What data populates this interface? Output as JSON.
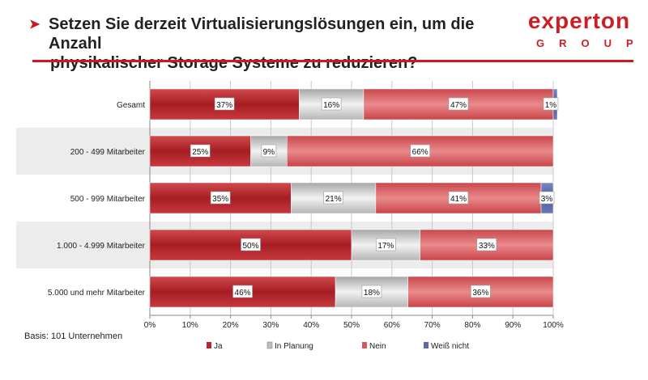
{
  "header": {
    "title_line1": "Setzen Sie derzeit Virtualisierungslösungen ein, um die Anzahl",
    "title_line2": "physikalischer Storage Systeme zu reduzieren?",
    "arrow_icon": "arrow-right-icon"
  },
  "logo": {
    "word": "experton",
    "group": "GROUP"
  },
  "footer": {
    "basis": "Basis: 101 Unternehmen"
  },
  "colors": {
    "accent": "#d3161b",
    "ja": "#b5272c",
    "in_planung": "#bdbdbd",
    "nein": "#d7575b",
    "weiss_nicht": "#5b6aa8"
  },
  "chart_data": {
    "type": "bar",
    "orientation": "horizontal",
    "stacked": true,
    "title": "Setzen Sie derzeit Virtualisierungslösungen ein, um die Anzahl physikalischer Storage Systeme zu reduzieren?",
    "categories": [
      "Gesamt",
      "200 - 499 Mitarbeiter",
      "500 - 999 Mitarbeiter",
      "1.000 - 4.999 Mitarbeiter",
      "5.000 und mehr Mitarbeiter"
    ],
    "series": [
      {
        "name": "Ja",
        "values": [
          37,
          25,
          35,
          50,
          46
        ]
      },
      {
        "name": "In Planung",
        "values": [
          16,
          9,
          21,
          17,
          18
        ]
      },
      {
        "name": "Nein",
        "values": [
          47,
          66,
          41,
          33,
          36
        ]
      },
      {
        "name": "Weiß nicht",
        "values": [
          1,
          0,
          3,
          0,
          0
        ]
      }
    ],
    "data_labels": [
      [
        "37%",
        "16%",
        "47%",
        "1%"
      ],
      [
        "25%",
        "9%",
        "66%",
        ""
      ],
      [
        "35%",
        "21%",
        "41%",
        "3%"
      ],
      [
        "50%",
        "17%",
        "33%",
        ""
      ],
      [
        "46%",
        "18%",
        "36%",
        ""
      ]
    ],
    "xlim": [
      0,
      100
    ],
    "x_ticks": [
      "0%",
      "10%",
      "20%",
      "30%",
      "40%",
      "50%",
      "60%",
      "70%",
      "80%",
      "90%",
      "100%"
    ],
    "legend_position": "bottom",
    "xlabel": "",
    "ylabel": ""
  }
}
